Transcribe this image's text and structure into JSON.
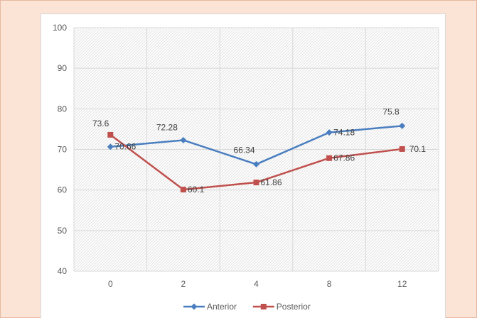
{
  "chart_data": {
    "type": "line",
    "categories": [
      "0",
      "2",
      "4",
      "8",
      "12"
    ],
    "ylim": [
      40,
      100
    ],
    "yticks": [
      "40",
      "50",
      "60",
      "70",
      "80",
      "90",
      "100"
    ],
    "series": [
      {
        "name": "Anterior",
        "color": "#4a7ebf",
        "marker": "diamond",
        "values": [
          70.66,
          72.28,
          66.34,
          74.18,
          75.8
        ],
        "labels": [
          "70.66",
          "72.28",
          "66.34",
          "74.18",
          "75.8"
        ]
      },
      {
        "name": "Posterior",
        "color": "#c0504d",
        "marker": "square",
        "values": [
          73.6,
          60.1,
          61.86,
          67.86,
          70.1
        ],
        "labels": [
          "73.6",
          "60.1",
          "61.86",
          "67.86",
          "70.1"
        ]
      }
    ],
    "grid": true,
    "legend_position": "bottom"
  }
}
